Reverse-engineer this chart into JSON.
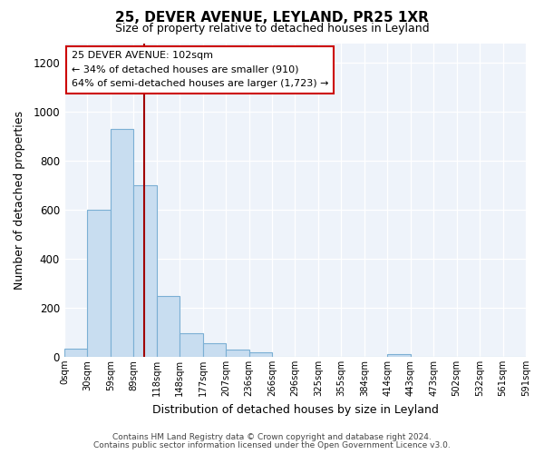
{
  "title": "25, DEVER AVENUE, LEYLAND, PR25 1XR",
  "subtitle": "Size of property relative to detached houses in Leyland",
  "xlabel": "Distribution of detached houses by size in Leyland",
  "ylabel": "Number of detached properties",
  "bar_color": "#c8ddf0",
  "bar_edge_color": "#7bafd4",
  "bin_left_edges": [
    0,
    29.5,
    59,
    88.5,
    118,
    147.5,
    177,
    206.5,
    236,
    265.5,
    295,
    324.5,
    354,
    383.5,
    413,
    442.5,
    472,
    501.5,
    531,
    560.5
  ],
  "bin_width": 29.5,
  "bin_labels": [
    "0sqm",
    "30sqm",
    "59sqm",
    "89sqm",
    "118sqm",
    "148sqm",
    "177sqm",
    "207sqm",
    "236sqm",
    "266sqm",
    "296sqm",
    "325sqm",
    "355sqm",
    "384sqm",
    "414sqm",
    "443sqm",
    "473sqm",
    "502sqm",
    "532sqm",
    "561sqm",
    "591sqm"
  ],
  "bar_heights": [
    35,
    600,
    930,
    700,
    248,
    95,
    55,
    30,
    20,
    0,
    0,
    0,
    0,
    0,
    10,
    0,
    0,
    0,
    0,
    0
  ],
  "xlim_min": 0,
  "xlim_max": 590,
  "ylim": [
    0,
    1280
  ],
  "yticks": [
    0,
    200,
    400,
    600,
    800,
    1000,
    1200
  ],
  "property_line_x": 102,
  "annotation_title": "25 DEVER AVENUE: 102sqm",
  "annotation_line1": "← 34% of detached houses are smaller (910)",
  "annotation_line2": "64% of semi-detached houses are larger (1,723) →",
  "footer_line1": "Contains HM Land Registry data © Crown copyright and database right 2024.",
  "footer_line2": "Contains public sector information licensed under the Open Government Licence v3.0.",
  "background_color": "#ffffff",
  "plot_bg_color": "#eef3fa",
  "grid_color": "#ffffff"
}
